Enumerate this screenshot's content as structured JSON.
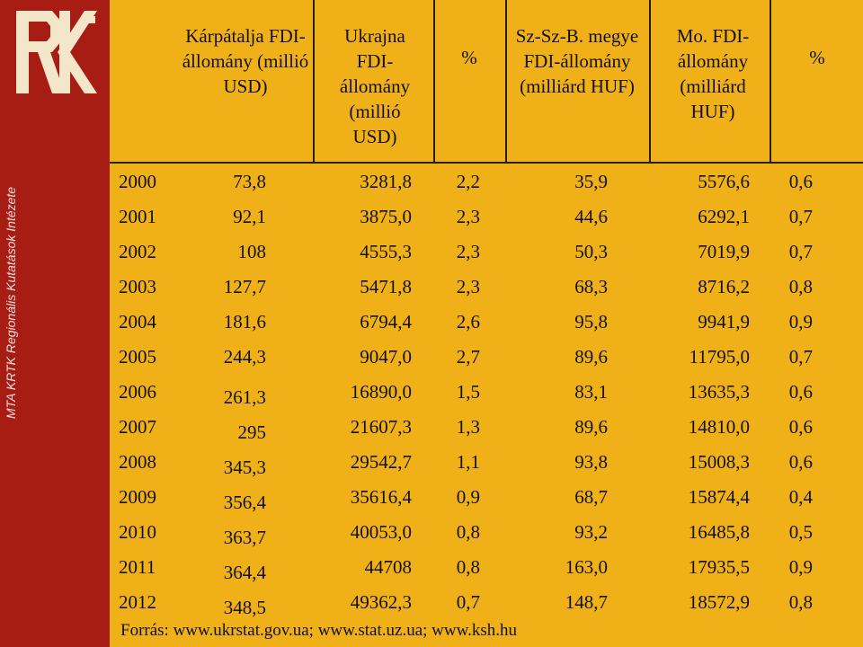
{
  "sidebar": {
    "vertical_text": "MTA KRTK Regionális Kutatások Intézete"
  },
  "headers": [
    "Kárpátalja FDI-állomány (millió USD)",
    "Ukrajna FDI-állomány (millió USD)",
    "%",
    "Sz-Sz-B. megye FDI-állomány (milliárd HUF)",
    "Mo. FDI-állomány (milliárd HUF)",
    "%"
  ],
  "rows": [
    {
      "year": "2000",
      "karpatalja_fdi": "73,8",
      "ukrajna_fdi": "3281,8",
      "pct1": "2,2",
      "szszb_fdi": "35,9",
      "mo_fdi": "5576,6",
      "pct2": "0,6"
    },
    {
      "year": "2001",
      "karpatalja_fdi": "92,1",
      "ukrajna_fdi": "3875,0",
      "pct1": "2,3",
      "szszb_fdi": "44,6",
      "mo_fdi": "6292,1",
      "pct2": "0,7"
    },
    {
      "year": "2002",
      "karpatalja_fdi": "108",
      "ukrajna_fdi": "4555,3",
      "pct1": "2,3",
      "szszb_fdi": "50,3",
      "mo_fdi": "7019,9",
      "pct2": "0,7"
    },
    {
      "year": "2003",
      "karpatalja_fdi": "127,7",
      "ukrajna_fdi": "5471,8",
      "pct1": "2,3",
      "szszb_fdi": "68,3",
      "mo_fdi": "8716,2",
      "pct2": "0,8"
    },
    {
      "year": "2004",
      "karpatalja_fdi": "181,6",
      "ukrajna_fdi": "6794,4",
      "pct1": "2,6",
      "szszb_fdi": "95,8",
      "mo_fdi": "9941,9",
      "pct2": "0,9"
    },
    {
      "year": "2005",
      "karpatalja_fdi": "244,3",
      "ukrajna_fdi": "9047,0",
      "pct1": "2,7",
      "szszb_fdi": "89,6",
      "mo_fdi": "11795,0",
      "pct2": "0,7"
    },
    {
      "year": "2006",
      "karpatalja_fdi": "261,3",
      "ukrajna_fdi": "16890,0",
      "pct1": "1,5",
      "szszb_fdi": "83,1",
      "mo_fdi": "13635,3",
      "pct2": "0,6"
    },
    {
      "year": "2007",
      "karpatalja_fdi": "295",
      "ukrajna_fdi": "21607,3",
      "pct1": "1,3",
      "szszb_fdi": "89,6",
      "mo_fdi": "14810,0",
      "pct2": "0,6"
    },
    {
      "year": "2008",
      "karpatalja_fdi": "345,3",
      "ukrajna_fdi": "29542,7",
      "pct1": "1,1",
      "szszb_fdi": "93,8",
      "mo_fdi": "15008,3",
      "pct2": "0,6"
    },
    {
      "year": "2009",
      "karpatalja_fdi": "356,4",
      "ukrajna_fdi": "35616,4",
      "pct1": "0,9",
      "szszb_fdi": "68,7",
      "mo_fdi": "15874,4",
      "pct2": "0,4"
    },
    {
      "year": "2010",
      "karpatalja_fdi": "363,7",
      "ukrajna_fdi": "40053,0",
      "pct1": "0,8",
      "szszb_fdi": "93,2",
      "mo_fdi": "16485,8",
      "pct2": "0,5"
    },
    {
      "year": "2011",
      "karpatalja_fdi": "364,4",
      "ukrajna_fdi": "44708",
      "pct1": "0,8",
      "szszb_fdi": "163,0",
      "mo_fdi": "17935,5",
      "pct2": "0,9"
    },
    {
      "year": "2012",
      "karpatalja_fdi": "348,5",
      "ukrajna_fdi": "49362,3",
      "pct1": "0,7",
      "szszb_fdi": "148,7",
      "mo_fdi": "18572,9",
      "pct2": "0,8"
    }
  ],
  "source": "Forrás: www.ukrstat.gov.ua; www.stat.uz.ua; www.ksh.hu",
  "colors": {
    "background": "#f0b018",
    "sidebar": "#a71d14"
  }
}
